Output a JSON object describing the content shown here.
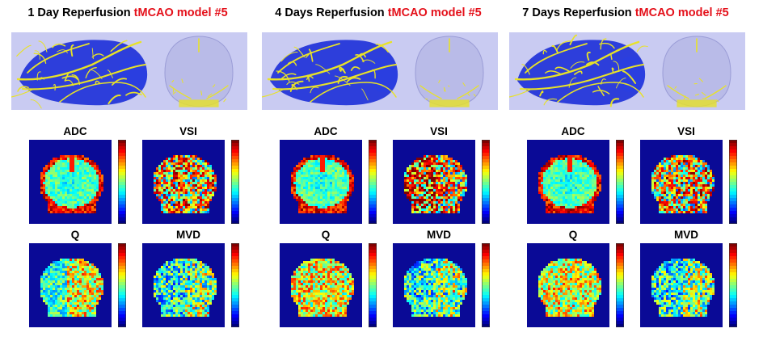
{
  "panels": [
    {
      "day_label": "1 Day Reperfusion",
      "model_label": "tMCAO model #5"
    },
    {
      "day_label": "4 Days Reperfusion",
      "model_label": "tMCAO model #5"
    },
    {
      "day_label": "7 Days Reperfusion",
      "model_label": "tMCAO model #5"
    }
  ],
  "map_labels": [
    "ADC",
    "VSI",
    "Q",
    "MVD"
  ],
  "colors": {
    "model_text": "#e4101a",
    "angio_background": "#c9cbf2",
    "brain_volume": "#1c2fd8",
    "vessels": "#e8e227",
    "map_background": "#0a0a96"
  }
}
